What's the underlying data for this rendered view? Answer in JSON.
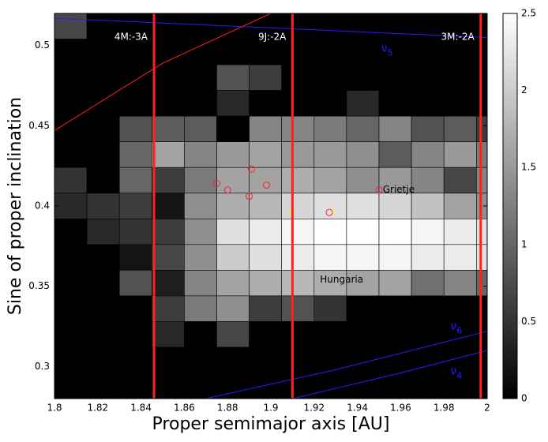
{
  "chart_data": {
    "type": "heatmap",
    "xlabel": "Proper semimajor axis [AU]",
    "ylabel": "Sine of proper inclination",
    "xlim": [
      1.8,
      2.0
    ],
    "ylim": [
      0.28,
      0.52
    ],
    "xticks": [
      1.8,
      1.82,
      1.84,
      1.86,
      1.88,
      1.9,
      1.92,
      1.94,
      1.96,
      1.98,
      2
    ],
    "yticks": [
      0.3,
      0.35,
      0.4,
      0.45,
      0.5
    ],
    "clim": [
      0,
      2.5
    ],
    "cticks": [
      0,
      0.5,
      1,
      1.5,
      2,
      2.5
    ],
    "xbins": [
      1.8,
      1.815,
      1.83,
      1.845,
      1.86,
      1.875,
      1.89,
      1.905,
      1.92,
      1.935,
      1.95,
      1.965,
      1.98,
      1.995,
      2.01
    ],
    "ybins": [
      0.52,
      0.504,
      0.488,
      0.472,
      0.456,
      0.44,
      0.424,
      0.408,
      0.392,
      0.376,
      0.36,
      0.344,
      0.328,
      0.312,
      0.296,
      0.28
    ],
    "z": [
      [
        0.7,
        0,
        0,
        0,
        0,
        0,
        0,
        0,
        0,
        0,
        0,
        0,
        0,
        0
      ],
      [
        0,
        0,
        0,
        0,
        0,
        0,
        0,
        0,
        0,
        0,
        0,
        0,
        0,
        0
      ],
      [
        0,
        0,
        0,
        0,
        0,
        0.8,
        0.6,
        0,
        0,
        0,
        0,
        0,
        0,
        0
      ],
      [
        0,
        0,
        0,
        0,
        0,
        0.4,
        0,
        0,
        0,
        0.4,
        0,
        0,
        0,
        0
      ],
      [
        0,
        0,
        0.8,
        0.9,
        0.9,
        0,
        1.3,
        1.3,
        1.2,
        1.0,
        1.3,
        0.8,
        0.9,
        0.6
      ],
      [
        0,
        0,
        1.0,
        1.6,
        1.3,
        1.5,
        1.6,
        1.5,
        1.5,
        1.4,
        0.9,
        1.3,
        1.5,
        1.2
      ],
      [
        0.5,
        0,
        1.0,
        0.6,
        1.2,
        1.6,
        1.6,
        1.7,
        1.6,
        1.4,
        1.5,
        1.3,
        0.7,
        1.3
      ],
      [
        0.4,
        0.5,
        0.6,
        0.2,
        1.4,
        1.7,
        1.8,
        2.1,
        2.2,
        2.2,
        2.1,
        1.9,
        1.6,
        1.4
      ],
      [
        0,
        0.4,
        0.5,
        0.6,
        1.4,
        2.2,
        2.3,
        2.4,
        2.5,
        2.5,
        2.5,
        2.4,
        2.3,
        2.2
      ],
      [
        0,
        0,
        0.2,
        0.7,
        1.4,
        2.0,
        2.2,
        2.3,
        2.4,
        2.4,
        2.4,
        2.3,
        2.3,
        2.2
      ],
      [
        0,
        0,
        0.8,
        0.3,
        1.3,
        1.6,
        1.7,
        1.8,
        1.7,
        1.6,
        1.6,
        1.1,
        1.3,
        1.0
      ],
      [
        0,
        0,
        0,
        0.6,
        1.2,
        1.4,
        0.6,
        0.8,
        0.5,
        0,
        0,
        0,
        0,
        0
      ],
      [
        0,
        0,
        0,
        0.4,
        0,
        0.7,
        0,
        0,
        0,
        0,
        0,
        0,
        0,
        0
      ],
      [
        0,
        0,
        0,
        0,
        0,
        0,
        0,
        0,
        0,
        0,
        0,
        0,
        0,
        0
      ],
      [
        0,
        0,
        0,
        0,
        0,
        0,
        0,
        0,
        0,
        0,
        0,
        0,
        0,
        0
      ]
    ],
    "resonances": [
      {
        "label": "4M:-3A",
        "a": 1.846,
        "color": "#ff2020"
      },
      {
        "label": "9J:-2A",
        "a": 1.91,
        "color": "#ff2020"
      },
      {
        "label": "3M:-2A",
        "a": 1.997,
        "color": "#ff2020"
      }
    ],
    "curves": [
      {
        "symbol": "ν",
        "sub": "5",
        "color": "#2020ff",
        "x": [
          1.8,
          2.0
        ],
        "y": [
          0.517,
          0.505
        ],
        "label_at": [
          1.951,
          0.498
        ]
      },
      {
        "symbol": "ν",
        "sub": "6",
        "color": "#2020ff",
        "x": [
          1.87,
          1.93,
          2.0
        ],
        "y": [
          0.28,
          0.298,
          0.322
        ],
        "label_at": [
          1.983,
          0.325
        ]
      },
      {
        "symbol": "ν",
        "sub": "4",
        "color": "#2020ff",
        "x": [
          1.91,
          1.96,
          2.0
        ],
        "y": [
          0.28,
          0.296,
          0.31
        ],
        "label_at": [
          1.983,
          0.297
        ]
      },
      {
        "color": "#ff2020",
        "x": [
          1.8,
          1.85,
          1.9
        ],
        "y": [
          0.447,
          0.489,
          0.52
        ]
      }
    ],
    "asteroids": {
      "color": "#ff2020",
      "x": [
        1.875,
        1.88,
        1.89,
        1.891,
        1.898,
        1.927,
        1.95
      ],
      "y": [
        0.414,
        0.41,
        0.406,
        0.423,
        0.413,
        0.396,
        0.41
      ]
    },
    "markers": {
      "color": "#ffee00",
      "x": [
        1.909,
        1.929
      ],
      "y": [
        0.396,
        0.396
      ]
    },
    "annotations": [
      {
        "text": "Grietje",
        "x": 1.951,
        "y": 0.41
      },
      {
        "text": "Hungaria",
        "x": 1.922,
        "y": 0.354
      }
    ]
  }
}
